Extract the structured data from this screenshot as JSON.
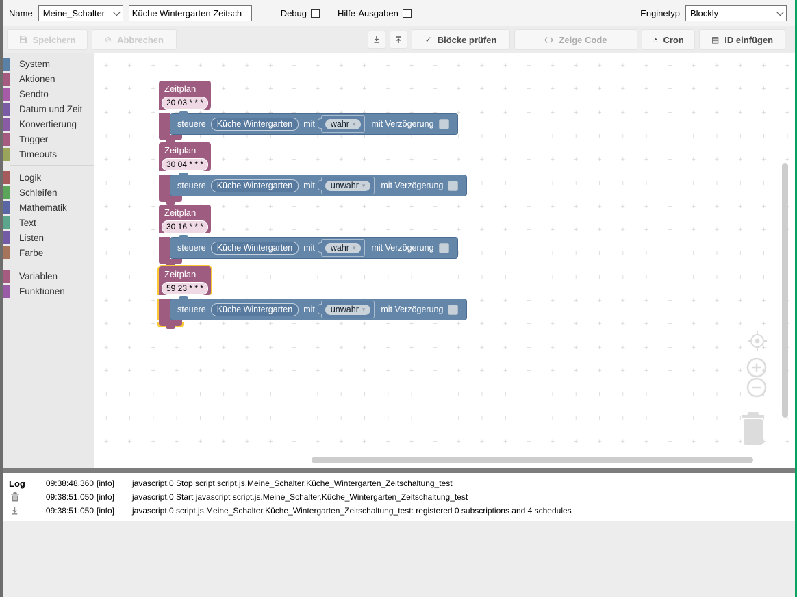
{
  "topbar": {
    "name_label": "Name",
    "script_group": {
      "value": "Meine_Schalter"
    },
    "script_name": {
      "value": "Küche Wintergarten Zeitsch"
    },
    "debug_label": "Debug",
    "help_label": "Hilfe-Ausgaben",
    "enginetype_label": "Enginetyp",
    "enginetype": {
      "value": "Blockly"
    }
  },
  "toolbar": {
    "save_label": "Speichern",
    "cancel_label": "Abbrechen",
    "check_label": "Blöcke prüfen",
    "show_code_label": "Zeige Code",
    "cron_label": "Cron",
    "insert_id_label": "ID einfügen",
    "check_icon": "✓",
    "cancel_icon": "⊘",
    "cron_icon": "◔",
    "insert_id_icon": "▤"
  },
  "sidebar": {
    "groups": [
      [
        {
          "label": "System",
          "color": "#5b80a5"
        },
        {
          "label": "Aktionen",
          "color": "#a55b80"
        },
        {
          "label": "Sendto",
          "color": "#a55ba5"
        },
        {
          "label": "Datum und Zeit",
          "color": "#7a5ba5"
        },
        {
          "label": "Konvertierung",
          "color": "#8a5ba5"
        },
        {
          "label": "Trigger",
          "color": "#a55b80"
        },
        {
          "label": "Timeouts",
          "color": "#9aa55b"
        }
      ],
      [
        {
          "label": "Logik",
          "color": "#a55b5b"
        },
        {
          "label": "Schleifen",
          "color": "#5ba55b"
        },
        {
          "label": "Mathematik",
          "color": "#5b67a5"
        },
        {
          "label": "Text",
          "color": "#5ba58c"
        },
        {
          "label": "Listen",
          "color": "#745ba5"
        },
        {
          "label": "Farbe",
          "color": "#a5745b"
        }
      ],
      [
        {
          "label": "Variablen",
          "color": "#a55b80"
        },
        {
          "label": "Funktionen",
          "color": "#995ba5"
        }
      ]
    ]
  },
  "workspace": {
    "block_labels": {
      "header": "Zeitplan",
      "action": "steuere",
      "object": "Küche Wintergarten",
      "with": "mit",
      "delay": "mit Verzögerung",
      "dropdown_arrow": "▾"
    },
    "colors": {
      "schedule_block": "#9e5c80",
      "control_block": "#6486a9",
      "selection_outline": "#fdc835"
    },
    "schedules": [
      {
        "cron": "20 03 * * *",
        "value": "wahr",
        "selected": false
      },
      {
        "cron": "30 04 * * *",
        "value": "unwahr",
        "selected": false
      },
      {
        "cron": "30 16 * * *",
        "value": "wahr",
        "selected": false
      },
      {
        "cron": "59 23 * * *",
        "value": "unwahr",
        "selected": true
      }
    ]
  },
  "log": {
    "label": "Log",
    "rows": [
      {
        "time": "09:38:48.360",
        "level": "[info]",
        "message": "javascript.0 Stop script script.js.Meine_Schalter.Küche_Wintergarten_Zeitschaltung_test"
      },
      {
        "time": "09:38:51.050",
        "level": "[info]",
        "message": "javascript.0 Start javascript script.js.Meine_Schalter.Küche_Wintergarten_Zeitschaltung_test"
      },
      {
        "time": "09:38:51.050",
        "level": "[info]",
        "message": "javascript.0 script.js.Meine_Schalter.Küche_Wintergarten_Zeitschaltung_test: registered 0 subscriptions and 4 schedules"
      }
    ]
  }
}
